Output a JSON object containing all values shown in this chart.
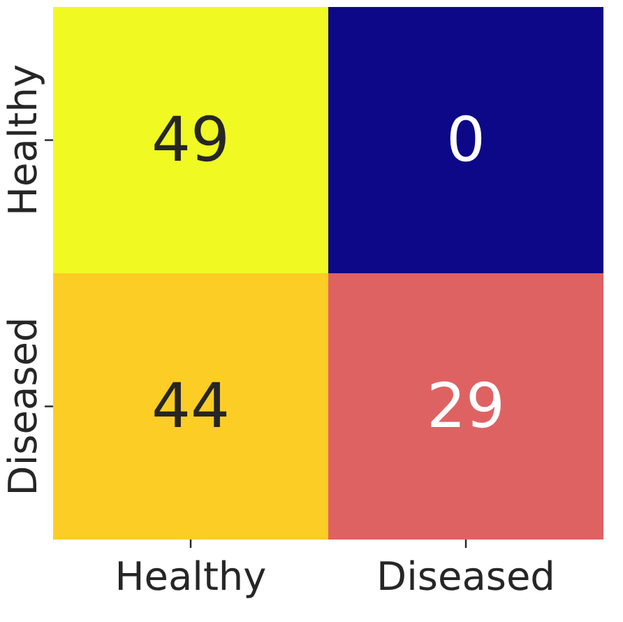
{
  "chart_data": {
    "type": "heatmap",
    "categories": [
      "Healthy",
      "Diseased"
    ],
    "y_categories": [
      "Healthy",
      "Diseased"
    ],
    "cells": [
      [
        49,
        0
      ],
      [
        44,
        29
      ]
    ],
    "data_labels": true
  }
}
